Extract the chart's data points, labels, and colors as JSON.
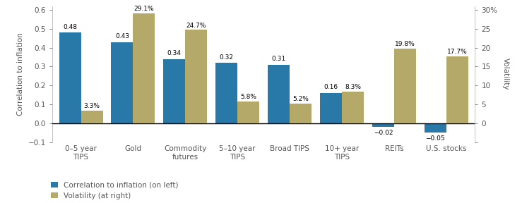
{
  "categories": [
    "0–5 year\nTIPS",
    "Gold",
    "Commodity\nfutures",
    "5–10 year\nTIPS",
    "Broad TIPS",
    "10+ year\nTIPS",
    "REITs",
    "U.S. stocks"
  ],
  "correlation": [
    0.48,
    0.43,
    0.34,
    0.32,
    0.31,
    0.16,
    -0.02,
    -0.05
  ],
  "volatility": [
    3.3,
    29.1,
    24.7,
    5.8,
    5.2,
    8.3,
    19.8,
    17.7
  ],
  "corr_labels": [
    "0.48",
    "0.43",
    "0.34",
    "0.32",
    "0.31",
    "0.16",
    "−0.02",
    "−0.05"
  ],
  "vol_labels": [
    "3.3%",
    "29.1%",
    "24.7%",
    "5.8%",
    "5.2%",
    "8.3%",
    "19.8%",
    "17.7%"
  ],
  "bar_color_corr": "#2878a8",
  "bar_color_vol": "#b5a96a",
  "ylim_left": [
    -0.1,
    0.62
  ],
  "ylim_right": [
    -5,
    31
  ],
  "ylabel_left": "Correlation to inflation",
  "ylabel_right": "Volatility",
  "yticks_left": [
    -0.1,
    0.0,
    0.1,
    0.2,
    0.3,
    0.4,
    0.5,
    0.6
  ],
  "yticks_right": [
    -5,
    0,
    5,
    10,
    15,
    20,
    25,
    30
  ],
  "ytick_labels_right": [
    "",
    "0",
    "5",
    "10",
    "15",
    "20",
    "25",
    "30%"
  ],
  "legend_labels": [
    "Correlation to inflation (on left)",
    "Volatility (at right)"
  ],
  "background_color": "#ffffff"
}
